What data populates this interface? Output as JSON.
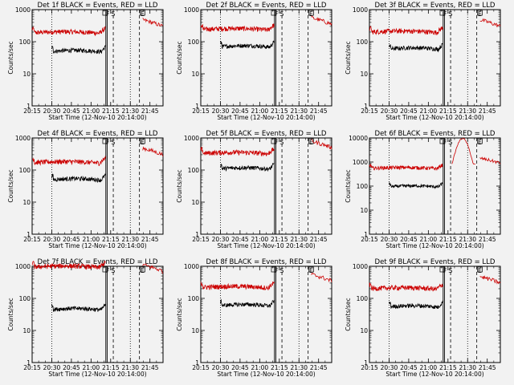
{
  "figure": {
    "background": "#f2f2f2",
    "colors": {
      "events": "#000000",
      "lld": "#cc0000",
      "axis": "#000000"
    }
  },
  "chart_data": {
    "type": "line",
    "layout": "3x3 grid",
    "x_tick_labels": [
      "20:15",
      "20:30",
      "20:45",
      "21:00",
      "21:15",
      "21:30",
      "21:45"
    ],
    "x_tick_minutes": [
      15,
      30,
      45,
      60,
      75,
      90,
      105
    ],
    "xlim_minutes": [
      15,
      115
    ],
    "xlabel": "Start Time (12-Nov-10 20:14:00)",
    "ylabel": "Counts/sec",
    "yscale": "log",
    "markers": {
      "dotted_minutes": [
        30,
        90
      ],
      "solid_minutes": [
        71.3,
        72.3
      ],
      "dashed_minutes": [
        77,
        97
      ],
      "box_minutes": [
        70.8,
        99.3
      ],
      "labels": [
        {
          "text": "F",
          "minute": 72.8
        },
        {
          "text": "S",
          "minute": 76.8
        },
        {
          "text": "E",
          "minute": 99.3
        }
      ]
    },
    "panels": [
      {
        "title": "Det 1f BLACK = Events, RED = LLD",
        "ylim": [
          1,
          1000
        ],
        "y_tick_labels": [
          "1",
          "10",
          "100",
          "1000"
        ],
        "events_level": 50,
        "lld_level": 190,
        "lld_end_level": 300
      },
      {
        "title": "Det 2f BLACK = Events, RED = LLD",
        "ylim": [
          1,
          1000
        ],
        "y_tick_labels": [
          "1",
          "10",
          "100",
          "1000"
        ],
        "events_level": 70,
        "lld_level": 240,
        "lld_end_level": 350
      },
      {
        "title": "Det 3f BLACK = Events, RED = LLD",
        "ylim": [
          1,
          1000
        ],
        "y_tick_labels": [
          "1",
          "10",
          "100",
          "1000"
        ],
        "events_level": 60,
        "lld_level": 200,
        "lld_end_level": 300
      },
      {
        "title": "Det 4f BLACK = Events, RED = LLD",
        "ylim": [
          1,
          1000
        ],
        "y_tick_labels": [
          "1",
          "10",
          "100",
          "1000"
        ],
        "events_level": 50,
        "lld_level": 170,
        "lld_end_level": 300
      },
      {
        "title": "Det 5f BLACK = Events, RED = LLD",
        "ylim": [
          1,
          1000
        ],
        "y_tick_labels": [
          "1",
          "10",
          "100",
          "1000"
        ],
        "events_level": 110,
        "lld_level": 330,
        "lld_end_level": 500
      },
      {
        "title": "Det 6f BLACK = Events, RED = LLD",
        "ylim": [
          1,
          10000
        ],
        "y_tick_labels": [
          "1",
          "10",
          "100",
          "1000",
          "10000"
        ],
        "events_level": 95,
        "lld_level": 550,
        "lld_end_level": 900,
        "flare": true
      },
      {
        "title": "Det 7f BLACK = Events, RED = LLD",
        "ylim": [
          1,
          1000
        ],
        "y_tick_labels": [
          "1",
          "10",
          "100",
          "1000"
        ],
        "events_level": 45,
        "lld_level": 950,
        "lld_end_level": 700
      },
      {
        "title": "Det 8f BLACK = Events, RED = LLD",
        "ylim": [
          1,
          1000
        ],
        "y_tick_labels": [
          "1",
          "10",
          "100",
          "1000"
        ],
        "events_level": 60,
        "lld_level": 220,
        "lld_end_level": 350
      },
      {
        "title": "Det 9f BLACK = Events, RED = LLD",
        "ylim": [
          1,
          1000
        ],
        "y_tick_labels": [
          "1",
          "10",
          "100",
          "1000"
        ],
        "events_level": 55,
        "lld_level": 200,
        "lld_end_level": 300
      }
    ]
  }
}
